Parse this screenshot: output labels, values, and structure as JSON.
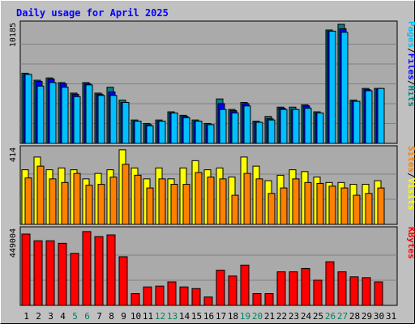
{
  "chart_data": {
    "type": "bar",
    "title": "Daily usage for April 2025",
    "categories": [
      "1",
      "2",
      "3",
      "4",
      "5",
      "6",
      "7",
      "8",
      "9",
      "10",
      "11",
      "12",
      "13",
      "14",
      "15",
      "16",
      "17",
      "18",
      "19",
      "20",
      "21",
      "22",
      "23",
      "24",
      "25",
      "26",
      "27",
      "28",
      "29",
      "30",
      "31"
    ],
    "weekend_days": [
      "5",
      "6",
      "12",
      "13",
      "19",
      "20",
      "26",
      "27"
    ],
    "panels": [
      {
        "id": "hits",
        "ymax_label": "10185",
        "ymax": 10185,
        "side_label": {
          "parts": [
            "Pages",
            "/",
            "Files",
            "/",
            "Hits"
          ]
        },
        "series": [
          {
            "name": "Hits",
            "color": "#008080",
            "values": [
              6000,
              5400,
              5600,
              5200,
              4300,
              5200,
              4300,
              4800,
              3700,
              2000,
              1700,
              2000,
              2700,
              2400,
              2000,
              1700,
              3800,
              2900,
              3500,
              1900,
              2300,
              3100,
              3100,
              3300,
              2700,
              9700,
              10185,
              3700,
              4700,
              4700,
              0
            ]
          },
          {
            "name": "Files",
            "color": "#0000ff",
            "values": [
              5900,
              5300,
              5500,
              5100,
              4200,
              5100,
              4200,
              4400,
              3500,
              1900,
              1600,
              1900,
              2600,
              2300,
              1900,
              1600,
              3400,
              2800,
              3400,
              1800,
              2100,
              3000,
              2900,
              3200,
              2600,
              9600,
              9800,
              3600,
              4600,
              4600,
              0
            ]
          },
          {
            "name": "Pages",
            "color": "#00c0ff",
            "values": [
              5900,
              4900,
              5200,
              4800,
              4000,
              5000,
              4100,
              4100,
              3500,
              1900,
              1500,
              1900,
              2600,
              2200,
              1900,
              1600,
              2900,
              2600,
              3200,
              1800,
              2000,
              2900,
              2900,
              3000,
              2600,
              9600,
              9500,
              3600,
              4500,
              4700,
              0
            ]
          }
        ]
      },
      {
        "id": "visits",
        "ymax_label": "414",
        "ymax": 414,
        "side_label": {
          "parts": [
            "Sites",
            "/",
            "Visits"
          ]
        },
        "series": [
          {
            "name": "Visits",
            "color": "#ffff00",
            "values": [
              300,
              370,
              300,
              310,
              300,
              250,
              280,
              300,
              410,
              310,
              250,
              310,
              250,
              310,
              350,
              300,
              310,
              260,
              370,
              320,
              240,
              270,
              300,
              290,
              260,
              230,
              230,
              220,
              220,
              240,
              0
            ]
          },
          {
            "name": "Sites",
            "color": "#ff8000",
            "values": [
              255,
              320,
              250,
              230,
              280,
              215,
              220,
              260,
              330,
              270,
              200,
              250,
              220,
              220,
              285,
              260,
              250,
              160,
              280,
              250,
              170,
              200,
              250,
              230,
              225,
              210,
              200,
              160,
              170,
              200,
              0
            ]
          }
        ]
      },
      {
        "id": "kbytes",
        "ymax_label": "449004",
        "ymax": 449004,
        "side_label": {
          "parts": [
            "KBytes"
          ]
        },
        "series": [
          {
            "name": "KBytes",
            "color": "#ff0000",
            "values": [
              425000,
              385000,
              385000,
              370000,
              310000,
              440000,
              410000,
              420000,
              290000,
              70000,
              110000,
              115000,
              140000,
              110000,
              100000,
              50000,
              210000,
              175000,
              240000,
              70000,
              70000,
              200000,
              200000,
              220000,
              150000,
              260000,
              200000,
              170000,
              165000,
              140000,
              0
            ]
          }
        ]
      }
    ],
    "colors": {
      "title": "#0000ff",
      "background": "#c0c0c0",
      "plot_bg": "#aaaaaa",
      "weekend_label": "#00805c",
      "weekday_label": "#000000",
      "gridline": "#808080"
    }
  }
}
